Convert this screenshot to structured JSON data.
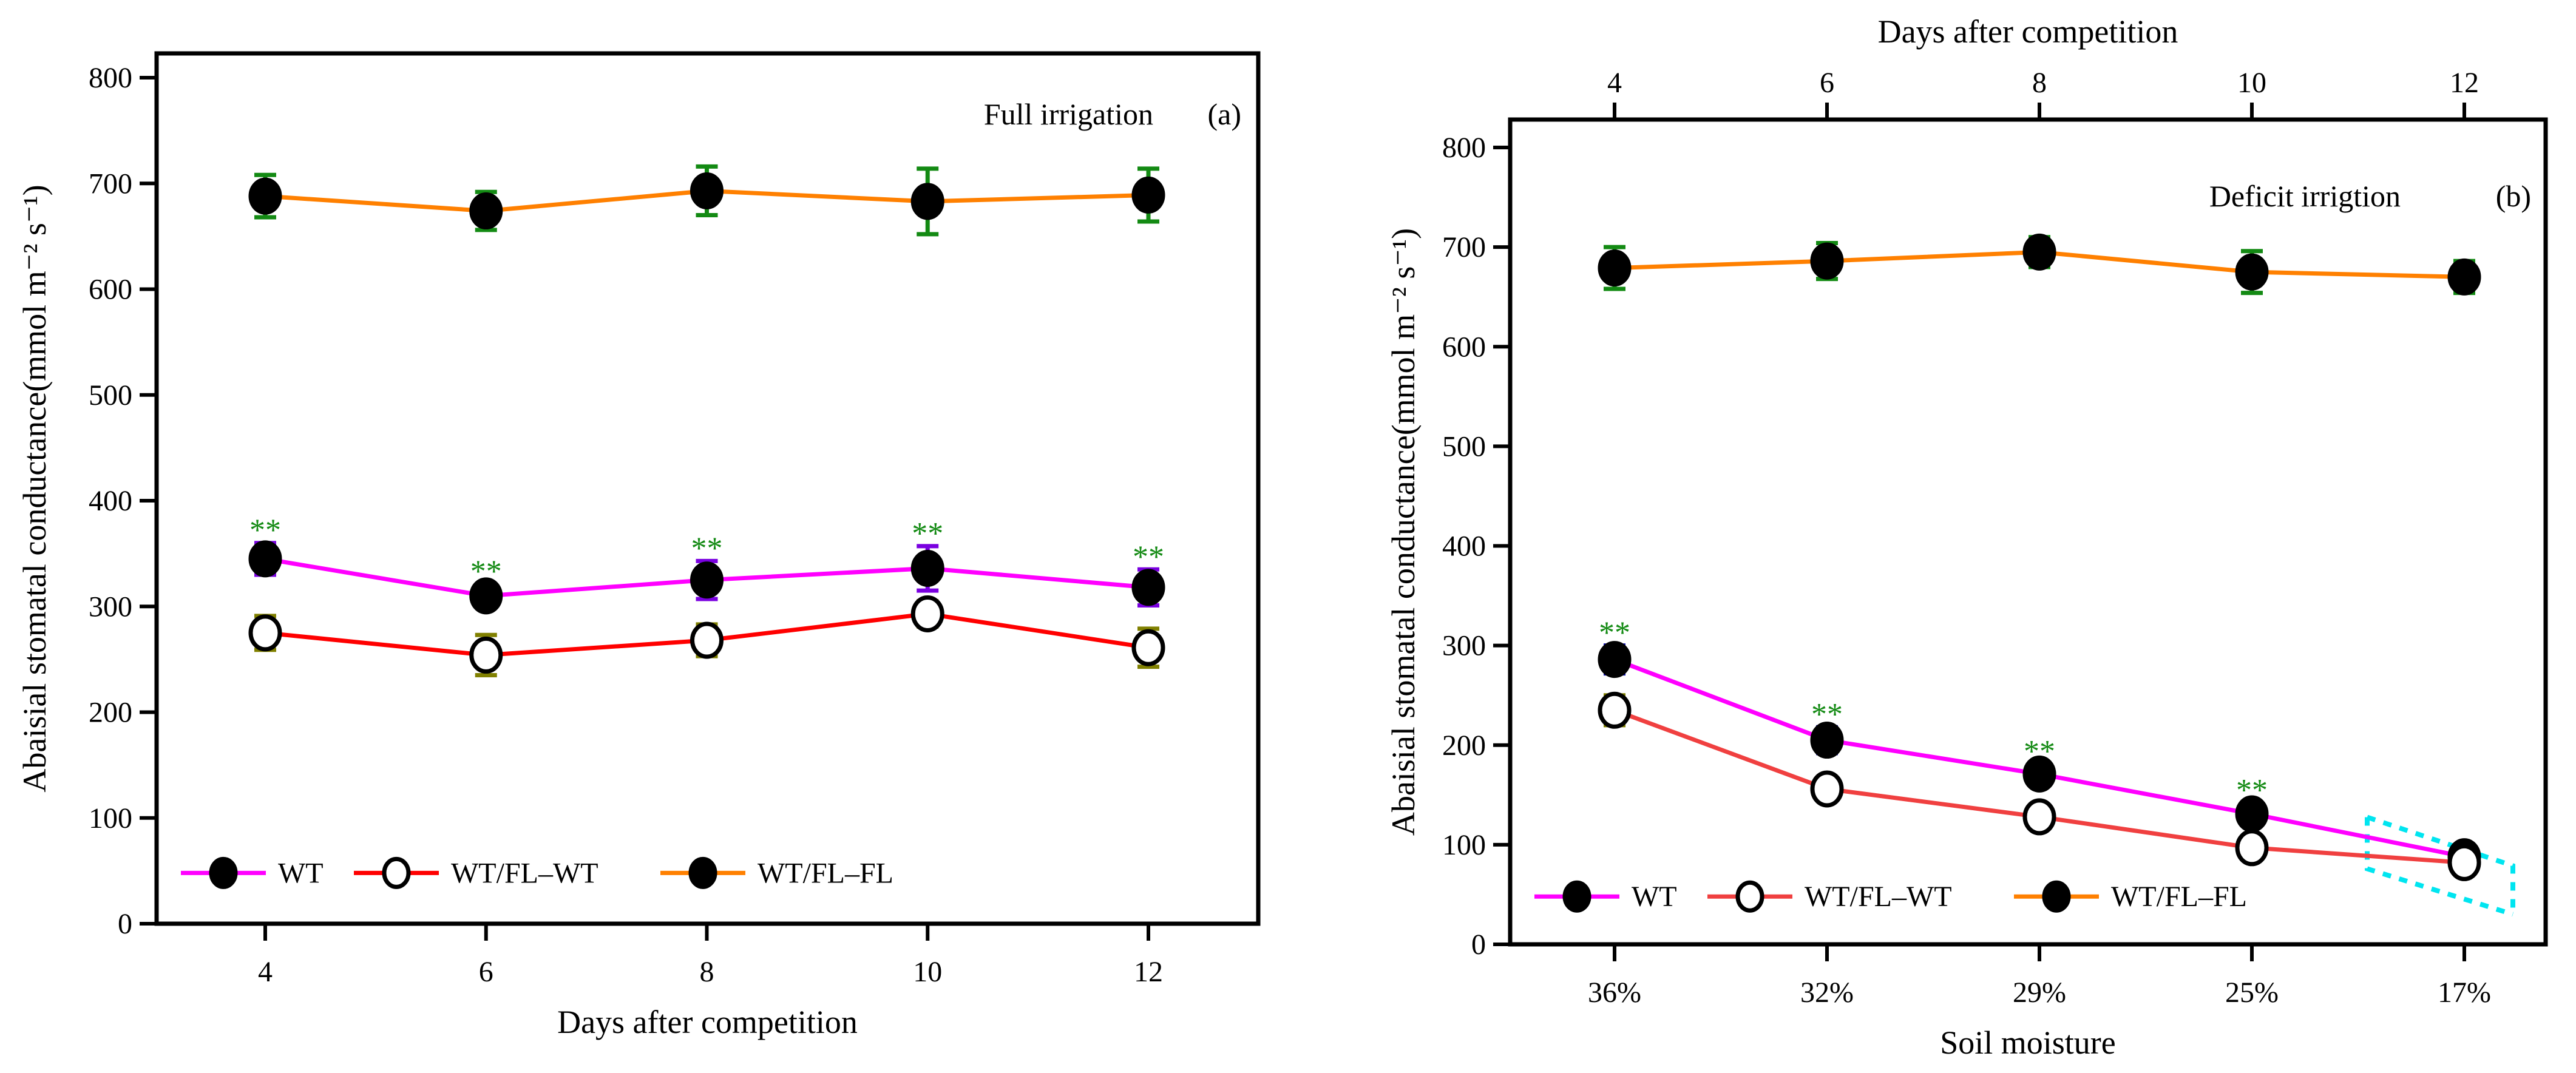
{
  "chart_data": [
    {
      "type": "line",
      "panel": "(a)",
      "annotation": "Full irrigation",
      "xlabel": "Days after competition",
      "ylabel": "Abaisial stomatal conductance(mmol m⁻² s⁻¹)",
      "x": [
        4,
        6,
        8,
        10,
        12
      ],
      "x_tick_labels": [
        "4",
        "6",
        "8",
        "10",
        "12"
      ],
      "xlim": [
        3,
        13
      ],
      "ylim": [
        0,
        800
      ],
      "y_ticks": [
        "0",
        "100",
        "200",
        "300",
        "400",
        "500",
        "600",
        "700",
        "800"
      ],
      "legend_position": "bottom-left",
      "series": [
        {
          "name": "WT",
          "color": "#ff00ff",
          "marker": "filled",
          "err_color": "#7a00e0",
          "values": [
            345,
            310,
            325,
            336,
            318
          ],
          "errors": [
            15,
            11,
            18,
            21,
            17
          ]
        },
        {
          "name": "WT/FL–WT",
          "color": "#ff0000",
          "marker": "open",
          "err_color": "#808000",
          "values": [
            275,
            254,
            268,
            293,
            261
          ],
          "errors": [
            16,
            19,
            15,
            12,
            18
          ]
        },
        {
          "name": "WT/FL–FL",
          "color": "#ff8000",
          "marker": "filled",
          "err_color": "#138a13",
          "values": [
            688,
            674,
            693,
            683,
            689
          ],
          "errors": [
            20,
            18,
            23,
            31,
            25
          ]
        }
      ],
      "significance": {
        "label": "**",
        "x": [
          4,
          6,
          8,
          10,
          12
        ]
      }
    },
    {
      "type": "line",
      "panel": "(b)",
      "annotation": "Deficit irrigtion",
      "xlabel": "Soil moisture",
      "x2label": "Days after competition",
      "ylabel": "Abaisial stomatal conductance(mmol m⁻² s⁻¹)",
      "x": [
        4,
        6,
        8,
        10,
        12
      ],
      "x_tick_labels": [
        "36%",
        "32%",
        "29%",
        "25%",
        "17%"
      ],
      "x2_tick_labels": [
        "4",
        "6",
        "8",
        "10",
        "12"
      ],
      "xlim": [
        3,
        13
      ],
      "ylim": [
        0,
        800
      ],
      "y_ticks": [
        "0",
        "100",
        "200",
        "300",
        "400",
        "500",
        "600",
        "700",
        "800"
      ],
      "legend_position": "bottom-left",
      "series": [
        {
          "name": "WT",
          "color": "#ff00ff",
          "marker": "filled",
          "err_color": "#1010b0",
          "values": [
            286,
            205,
            171,
            131,
            88
          ],
          "errors": [
            14,
            13,
            10,
            11,
            9
          ]
        },
        {
          "name": "WT/FL–WT",
          "color": "#f04040",
          "marker": "open",
          "err_color": "#808000",
          "values": [
            235,
            156,
            128,
            97,
            82
          ],
          "errors": [
            15,
            12,
            10,
            11,
            8
          ]
        },
        {
          "name": "WT/FL–FL",
          "color": "#ff8000",
          "marker": "filled",
          "err_color": "#138a13",
          "values": [
            679,
            686,
            695,
            675,
            670
          ],
          "errors": [
            21,
            18,
            15,
            21,
            16
          ]
        }
      ],
      "significance": {
        "label": "**",
        "x": [
          4,
          6,
          8,
          10
        ]
      },
      "highlight_color": "#00e5f0"
    }
  ]
}
